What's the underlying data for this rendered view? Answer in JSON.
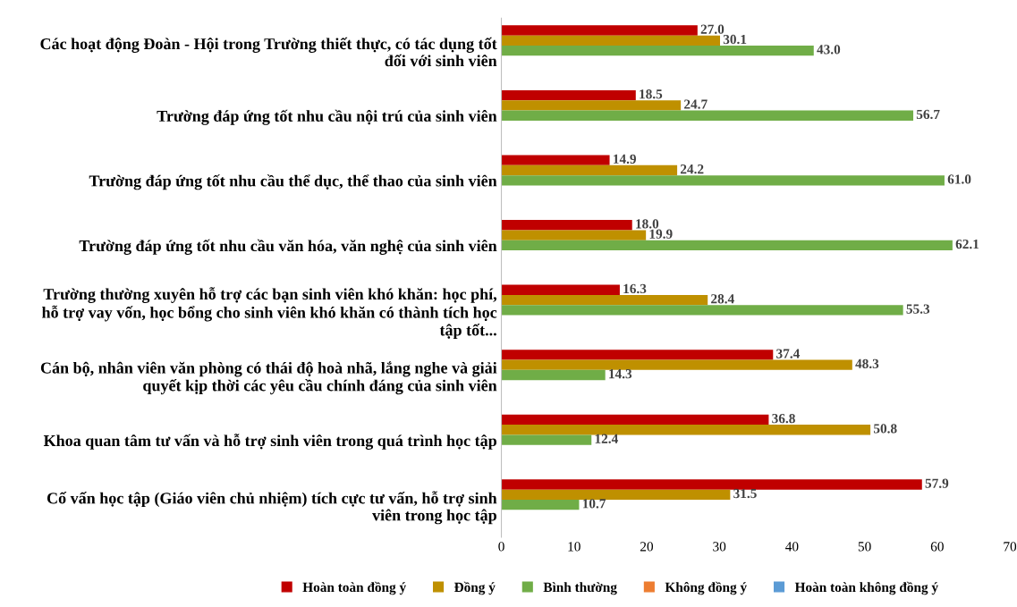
{
  "chart_data": {
    "type": "bar",
    "orientation": "horizontal",
    "categories": [
      "Các hoạt động Đoàn - Hội trong Trường thiết thực, có tác dụng tốt\nđối với sinh viên",
      "Trường đáp ứng tốt nhu cầu nội trú của sinh viên",
      "Trường đáp ứng tốt nhu cầu thể dục, thể thao của sinh viên",
      "Trường đáp ứng tốt nhu cầu văn hóa, văn nghệ của sinh viên",
      "Trường thường xuyên hỗ trợ các bạn sinh viên khó khăn: học phí,\nhỗ trợ vay vốn, học bổng cho sinh viên khó khăn có thành tích học\ntập tốt...",
      "Cán bộ, nhân viên văn phòng có thái độ hoà nhã, lắng nghe và giải\nquyết kịp thời các yêu cầu chính đáng của sinh viên",
      "Khoa quan tâm tư vấn và hỗ trợ sinh viên trong quá trình học tập",
      "Cố vấn học tập (Giáo viên chủ nhiệm) tích cực tư vấn, hỗ trợ sinh\nviên trong học tập"
    ],
    "series": [
      {
        "name": "Hoàn toàn đồng ý",
        "color": "#c00000",
        "values": [
          27.0,
          18.5,
          14.9,
          18.0,
          16.3,
          37.4,
          36.8,
          57.9
        ],
        "value_labels": [
          "27.0",
          "18.5",
          "14.9",
          "18.0",
          "16.3",
          "37.4",
          "36.8",
          "57.9"
        ]
      },
      {
        "name": "Đồng ý",
        "color": "#bf9000",
        "values": [
          30.1,
          24.7,
          24.2,
          19.9,
          28.4,
          48.3,
          50.8,
          31.5
        ],
        "value_labels": [
          "30.1",
          "24.7",
          "24.2",
          "19.9",
          "28.4",
          "48.3",
          "50.8",
          "31.5"
        ]
      },
      {
        "name": "Bình thường",
        "color": "#70ad47",
        "values": [
          43.0,
          56.7,
          61.0,
          62.1,
          55.3,
          14.3,
          12.4,
          10.7
        ],
        "value_labels": [
          "43.0",
          "56.7",
          "61.0",
          "62.1",
          "55.3",
          "14.3",
          "12.4",
          "10.7"
        ]
      },
      {
        "name": "Không đồng ý",
        "color": "#ed7d31",
        "values": [
          null,
          null,
          null,
          null,
          null,
          null,
          null,
          null
        ]
      },
      {
        "name": "Hoàn toàn không đồng ý",
        "color": "#5b9bd5",
        "values": [
          null,
          null,
          null,
          null,
          null,
          null,
          null,
          null
        ]
      }
    ],
    "xlim": [
      0,
      70
    ],
    "xticks": [
      0,
      10,
      20,
      30,
      40,
      50,
      60,
      70
    ],
    "legend": "bottom",
    "grid": false
  }
}
